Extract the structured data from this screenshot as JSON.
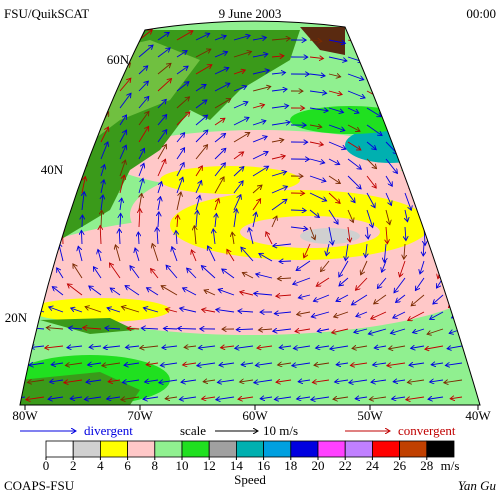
{
  "header": {
    "source": "FSU/QuikSCAT",
    "date": "9 June 2003",
    "time": "00:00"
  },
  "map": {
    "lat_labels": [
      "60N",
      "40N",
      "20N"
    ],
    "lon_labels": [
      "80W",
      "70W",
      "60W",
      "50W",
      "40W"
    ]
  },
  "legend": {
    "divergent": "divergent",
    "scale": "scale",
    "scale_value": "10 m/s",
    "convergent": "convergent"
  },
  "colorbar": {
    "label": "Speed",
    "unit": "m/s",
    "ticks": [
      0,
      2,
      4,
      6,
      8,
      10,
      12,
      14,
      16,
      18,
      20,
      22,
      24,
      26,
      28
    ],
    "colors": [
      "#ffffff",
      "#d0d0d0",
      "#ffff00",
      "#ffc8c8",
      "#90f090",
      "#20e020",
      "#a0a0a0",
      "#00b0b0",
      "#00a0e0",
      "#0000e0",
      "#ff40ff",
      "#c080ff",
      "#ff0000",
      "#c04000",
      "#000000"
    ]
  },
  "footer": {
    "left": "COAPS-FSU",
    "right": "Yan Gu"
  }
}
